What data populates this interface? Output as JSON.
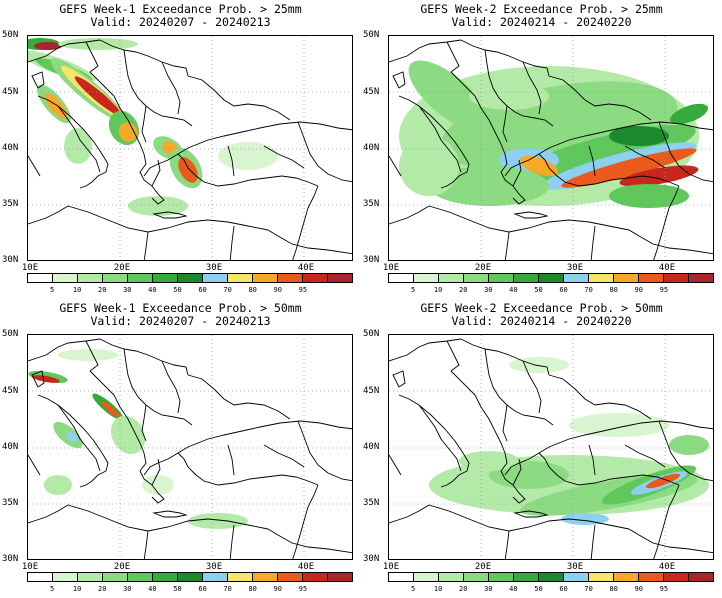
{
  "panels": [
    {
      "title": "GEFS Week-1 Exceedance Prob. > 25mm",
      "valid": "Valid: 20240207 - 20240213"
    },
    {
      "title": "GEFS Week-2 Exceedance Prob. > 25mm",
      "valid": "Valid: 20240214 - 20240220"
    },
    {
      "title": "GEFS Week-1 Exceedance Prob. > 50mm",
      "valid": "Valid: 20240207 - 20240213"
    },
    {
      "title": "GEFS Week-2 Exceedance Prob. > 50mm",
      "valid": "Valid: 20240214 - 20240220"
    }
  ],
  "lat_labels": [
    "50N",
    "45N",
    "40N",
    "35N",
    "30N"
  ],
  "lon_labels": [
    "10E",
    "20E",
    "30E",
    "40E"
  ],
  "colorbar": {
    "labels": [
      "5",
      "10",
      "20",
      "30",
      "40",
      "50",
      "60",
      "70",
      "80",
      "90",
      "95"
    ],
    "colors": [
      "#ffffff",
      "#d8f5d0",
      "#b4eaa8",
      "#8cdb82",
      "#5fc75c",
      "#34ab3c",
      "#1c8a2c",
      "#8ed0ef",
      "#f5e56a",
      "#f7a829",
      "#ea5a1c",
      "#c8281c",
      "#a6262a"
    ]
  }
}
